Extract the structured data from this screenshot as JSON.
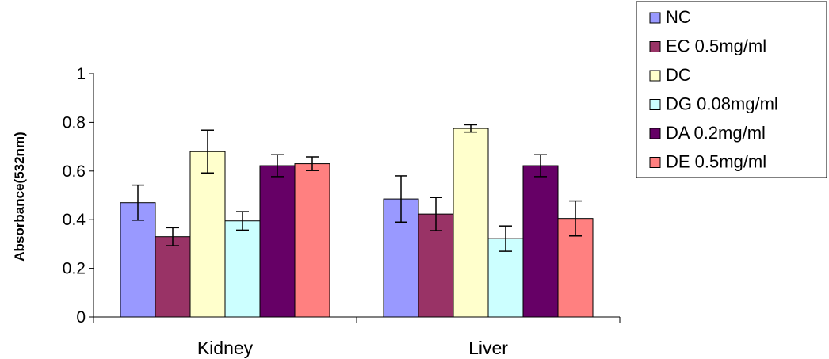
{
  "chart_data": {
    "type": "bar",
    "title": "",
    "xlabel": "",
    "ylabel": "Absorbance(532nm)",
    "ylim": [
      0,
      1
    ],
    "yticks": [
      "0",
      "0.2",
      "0.4",
      "0.6",
      "0.8",
      "1"
    ],
    "categories": [
      "Kidney",
      "Liver"
    ],
    "grid": false,
    "legend_position": "top-right",
    "series": [
      {
        "name": "NC",
        "color": "#9999ff",
        "values": [
          0.47,
          0.485
        ],
        "errors": [
          0.072,
          0.095
        ]
      },
      {
        "name": "EC 0.5mg/ml",
        "color": "#993366",
        "values": [
          0.33,
          0.423
        ],
        "errors": [
          0.037,
          0.068
        ]
      },
      {
        "name": "DC",
        "color": "#ffffcc",
        "values": [
          0.68,
          0.775
        ],
        "errors": [
          0.088,
          0.015
        ]
      },
      {
        "name": "DG 0.08mg/ml",
        "color": "#ccffff",
        "values": [
          0.395,
          0.322
        ],
        "errors": [
          0.038,
          0.052
        ]
      },
      {
        "name": "DA 0.2mg/ml",
        "color": "#660066",
        "values": [
          0.622,
          0.622
        ],
        "errors": [
          0.045,
          0.045
        ]
      },
      {
        "name": "DE 0.5mg/ml",
        "color": "#ff8080",
        "values": [
          0.63,
          0.405
        ],
        "errors": [
          0.028,
          0.072
        ]
      }
    ]
  }
}
